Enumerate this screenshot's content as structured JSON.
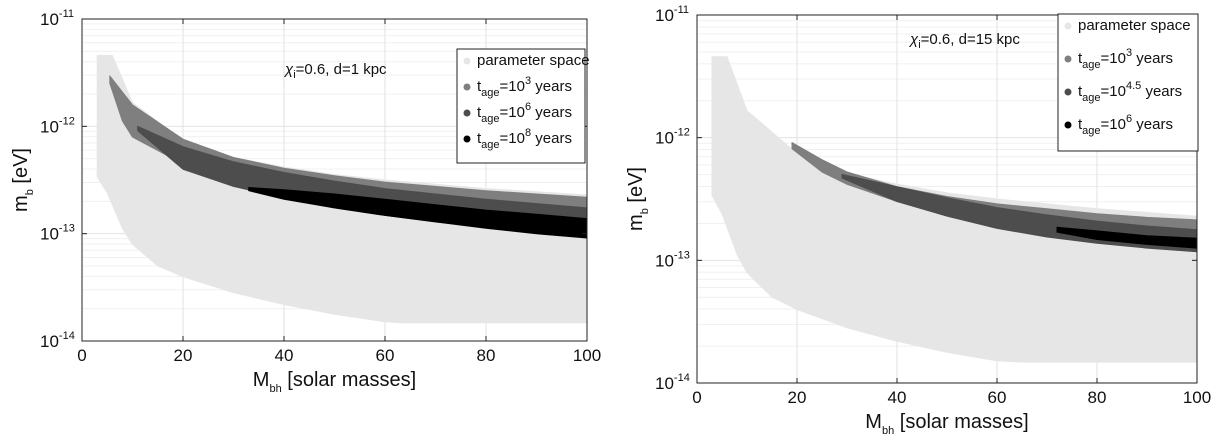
{
  "chart_data": [
    {
      "type": "area",
      "xlabel": {
        "main": "M",
        "sub": "bh",
        "rest": " [solar masses]"
      },
      "ylabel": {
        "main": "m",
        "sub": "b",
        "rest": " [eV]"
      },
      "xlim": [
        0,
        100
      ],
      "ylim_log10": [
        -14,
        -11
      ],
      "y_scale": "log",
      "grid": true,
      "xticks": [
        "0",
        "20",
        "40",
        "60",
        "80",
        "100"
      ],
      "yticks": [
        {
          "base": "10",
          "exp": "-14"
        },
        {
          "base": "10",
          "exp": "-13"
        },
        {
          "base": "10",
          "exp": "-12"
        },
        {
          "base": "10",
          "exp": "-11"
        }
      ],
      "annotation": {
        "chi": "χ",
        "chi_sub": "i",
        "text": "=0.6, d=1 kpc"
      },
      "legend_position": "top-right",
      "legend": [
        {
          "label": "parameter space",
          "color": "#e6e6e6"
        },
        {
          "pre": "t",
          "sub": "age",
          "mid": "=10",
          "sup": "3",
          "post": " years",
          "color": "#7f7f7f"
        },
        {
          "pre": "t",
          "sub": "age",
          "mid": "=10",
          "sup": "6",
          "post": " years",
          "color": "#4d4d4d"
        },
        {
          "pre": "t",
          "sub": "age",
          "mid": "=10",
          "sup": "8",
          "post": " years",
          "color": "#000000"
        }
      ],
      "series": [
        {
          "name": "parameter space",
          "color": "#e6e6e6",
          "upper": [
            [
              3,
              -11.34
            ],
            [
              6,
              -11.34
            ],
            [
              10,
              -11.78
            ],
            [
              20,
              -12.13
            ],
            [
              30,
              -12.29
            ],
            [
              40,
              -12.38
            ],
            [
              50,
              -12.45
            ],
            [
              60,
              -12.5
            ],
            [
              70,
              -12.54
            ],
            [
              80,
              -12.58
            ],
            [
              90,
              -12.61
            ],
            [
              100,
              -12.64
            ]
          ],
          "lower": [
            [
              3,
              -12.47
            ],
            [
              5,
              -12.62
            ],
            [
              8,
              -12.95
            ],
            [
              10,
              -13.1
            ],
            [
              15,
              -13.3
            ],
            [
              20,
              -13.4
            ],
            [
              30,
              -13.55
            ],
            [
              40,
              -13.66
            ],
            [
              50,
              -13.75
            ],
            [
              60,
              -13.82
            ],
            [
              63,
              -13.83
            ],
            [
              100,
              -13.83
            ]
          ]
        },
        {
          "name": "t_age=10^3 years",
          "color": "#7f7f7f",
          "upper": [
            [
              5.5,
              -11.53
            ],
            [
              10,
              -11.8
            ],
            [
              20,
              -12.12
            ],
            [
              30,
              -12.29
            ],
            [
              40,
              -12.39
            ],
            [
              50,
              -12.46
            ],
            [
              60,
              -12.52
            ],
            [
              70,
              -12.56
            ],
            [
              80,
              -12.6
            ],
            [
              90,
              -12.63
            ],
            [
              100,
              -12.66
            ]
          ],
          "lower": [
            [
              5.5,
              -11.6
            ],
            [
              8,
              -11.95
            ],
            [
              10,
              -12.1
            ],
            [
              20,
              -12.35
            ],
            [
              30,
              -12.52
            ],
            [
              40,
              -12.62
            ],
            [
              50,
              -12.7
            ],
            [
              60,
              -12.77
            ],
            [
              70,
              -12.83
            ],
            [
              80,
              -12.88
            ],
            [
              90,
              -12.92
            ],
            [
              100,
              -12.96
            ]
          ]
        },
        {
          "name": "t_age=10^6 years",
          "color": "#4d4d4d",
          "upper": [
            [
              11,
              -12.0
            ],
            [
              20,
              -12.19
            ],
            [
              30,
              -12.33
            ],
            [
              40,
              -12.43
            ],
            [
              50,
              -12.51
            ],
            [
              60,
              -12.58
            ],
            [
              70,
              -12.63
            ],
            [
              80,
              -12.68
            ],
            [
              90,
              -12.72
            ],
            [
              100,
              -12.76
            ]
          ],
          "lower": [
            [
              11,
              -12.04
            ],
            [
              20,
              -12.4
            ],
            [
              30,
              -12.56
            ],
            [
              40,
              -12.67
            ],
            [
              50,
              -12.76
            ],
            [
              60,
              -12.83
            ],
            [
              70,
              -12.89
            ],
            [
              80,
              -12.94
            ],
            [
              90,
              -12.99
            ],
            [
              100,
              -13.03
            ]
          ]
        },
        {
          "name": "t_age=10^8 years",
          "color": "#000000",
          "upper": [
            [
              33,
              -12.57
            ],
            [
              40,
              -12.59
            ],
            [
              50,
              -12.63
            ],
            [
              60,
              -12.68
            ],
            [
              70,
              -12.73
            ],
            [
              80,
              -12.78
            ],
            [
              90,
              -12.82
            ],
            [
              100,
              -12.86
            ]
          ],
          "lower": [
            [
              33,
              -12.6
            ],
            [
              40,
              -12.68
            ],
            [
              50,
              -12.76
            ],
            [
              60,
              -12.83
            ],
            [
              70,
              -12.89
            ],
            [
              80,
              -12.95
            ],
            [
              90,
              -13.0
            ],
            [
              100,
              -13.04
            ]
          ]
        }
      ]
    },
    {
      "type": "area",
      "xlabel": {
        "main": "M",
        "sub": "bh",
        "rest": " [solar masses]"
      },
      "ylabel": {
        "main": "m",
        "sub": "b",
        "rest": " [eV]"
      },
      "xlim": [
        0,
        100
      ],
      "ylim_log10": [
        -14,
        -11
      ],
      "y_scale": "log",
      "grid": true,
      "xticks": [
        "0",
        "20",
        "40",
        "60",
        "80",
        "100"
      ],
      "yticks": [
        {
          "base": "10",
          "exp": "-14"
        },
        {
          "base": "10",
          "exp": "-13"
        },
        {
          "base": "10",
          "exp": "-12"
        },
        {
          "base": "10",
          "exp": "-11"
        }
      ],
      "annotation": {
        "chi": "χ",
        "chi_sub": "i",
        "text": "=0.6, d=15 kpc"
      },
      "legend_position": "top-right",
      "legend": [
        {
          "label": "parameter space",
          "color": "#e6e6e6"
        },
        {
          "pre": "t",
          "sub": "age",
          "mid": "=10",
          "sup": "3",
          "post": " years",
          "color": "#7f7f7f"
        },
        {
          "pre": "t",
          "sub": "age",
          "mid": "=10",
          "sup": "4.5",
          "post": " years",
          "color": "#4d4d4d"
        },
        {
          "pre": "t",
          "sub": "age",
          "mid": "=10",
          "sup": "6",
          "post": " years",
          "color": "#000000"
        }
      ],
      "series": [
        {
          "name": "parameter space",
          "color": "#e6e6e6",
          "upper": [
            [
              3,
              -11.34
            ],
            [
              6,
              -11.34
            ],
            [
              10,
              -11.78
            ],
            [
              20,
              -12.13
            ],
            [
              30,
              -12.29
            ],
            [
              40,
              -12.38
            ],
            [
              50,
              -12.45
            ],
            [
              60,
              -12.5
            ],
            [
              70,
              -12.54
            ],
            [
              80,
              -12.58
            ],
            [
              90,
              -12.61
            ],
            [
              100,
              -12.64
            ]
          ],
          "lower": [
            [
              3,
              -12.47
            ],
            [
              5,
              -12.62
            ],
            [
              8,
              -12.95
            ],
            [
              10,
              -13.1
            ],
            [
              15,
              -13.3
            ],
            [
              20,
              -13.4
            ],
            [
              30,
              -13.55
            ],
            [
              40,
              -13.66
            ],
            [
              50,
              -13.75
            ],
            [
              60,
              -13.82
            ],
            [
              65,
              -13.83
            ],
            [
              100,
              -13.83
            ]
          ]
        },
        {
          "name": "t_age=10^3 years",
          "color": "#7f7f7f",
          "upper": [
            [
              19,
              -12.04
            ],
            [
              25,
              -12.18
            ],
            [
              30,
              -12.28
            ],
            [
              40,
              -12.4
            ],
            [
              50,
              -12.48
            ],
            [
              60,
              -12.54
            ],
            [
              70,
              -12.58
            ],
            [
              80,
              -12.62
            ],
            [
              90,
              -12.65
            ],
            [
              100,
              -12.67
            ]
          ],
          "lower": [
            [
              19,
              -12.09
            ],
            [
              25,
              -12.28
            ],
            [
              30,
              -12.38
            ],
            [
              40,
              -12.52
            ],
            [
              50,
              -12.62
            ],
            [
              60,
              -12.7
            ],
            [
              70,
              -12.77
            ],
            [
              80,
              -12.82
            ],
            [
              90,
              -12.86
            ],
            [
              100,
              -12.9
            ]
          ]
        },
        {
          "name": "t_age=10^4.5 years",
          "color": "#4d4d4d",
          "upper": [
            [
              29,
              -12.3
            ],
            [
              40,
              -12.4
            ],
            [
              50,
              -12.49
            ],
            [
              60,
              -12.57
            ],
            [
              70,
              -12.63
            ],
            [
              80,
              -12.68
            ],
            [
              90,
              -12.72
            ],
            [
              100,
              -12.75
            ]
          ],
          "lower": [
            [
              29,
              -12.33
            ],
            [
              40,
              -12.52
            ],
            [
              50,
              -12.64
            ],
            [
              60,
              -12.74
            ],
            [
              70,
              -12.81
            ],
            [
              80,
              -12.86
            ],
            [
              90,
              -12.9
            ],
            [
              100,
              -12.93
            ]
          ]
        },
        {
          "name": "t_age=10^6 years",
          "color": "#000000",
          "upper": [
            [
              72,
              -12.73
            ],
            [
              80,
              -12.76
            ],
            [
              90,
              -12.8
            ],
            [
              100,
              -12.82
            ]
          ],
          "lower": [
            [
              72,
              -12.77
            ],
            [
              80,
              -12.83
            ],
            [
              90,
              -12.87
            ],
            [
              100,
              -12.9
            ]
          ]
        }
      ]
    }
  ]
}
